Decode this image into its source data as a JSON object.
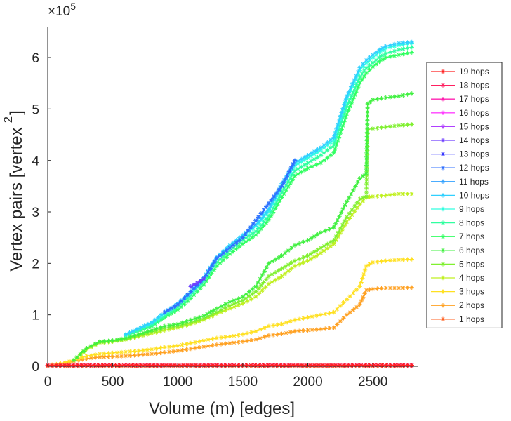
{
  "chart_data": {
    "type": "line",
    "xlabel": "Volume (m) [edges]",
    "ylabel": "Vertex pairs [vertex",
    "ylabel_superscript": "2",
    "ylabel_close": "]",
    "exponent_prefix": "×10",
    "exponent_power": "5",
    "xlim": [
      0,
      2850
    ],
    "ylim": [
      0,
      6.6
    ],
    "y_scale_note": "values in units of 10^5",
    "xticks": [
      0,
      500,
      1000,
      1500,
      2000,
      2500
    ],
    "xtick_labels": [
      "0",
      "500",
      "1000",
      "1500",
      "2000",
      "2500"
    ],
    "yticks": [
      0,
      1,
      2,
      3,
      4,
      5,
      6
    ],
    "ytick_labels": [
      "0",
      "1",
      "2",
      "3",
      "4",
      "5",
      "6"
    ],
    "legend_position": "right",
    "series": [
      {
        "name": "19 hops",
        "color": "#ff2020",
        "x": [
          0,
          2800
        ],
        "y": [
          0.02,
          0.02
        ]
      },
      {
        "name": "18 hops",
        "color": "#ff2060",
        "x": [
          0,
          2800
        ],
        "y": [
          0.02,
          0.02
        ]
      },
      {
        "name": "17 hops",
        "color": "#ff20b0",
        "x": [
          0,
          2800
        ],
        "y": [
          0.02,
          0.02
        ]
      },
      {
        "name": "16 hops",
        "color": "#ff40ff",
        "x": [
          0,
          2800
        ],
        "y": [
          0.02,
          0.02
        ]
      },
      {
        "name": "15 hops",
        "color": "#b040ff",
        "x": [
          0,
          2800
        ],
        "y": [
          0.02,
          0.02
        ]
      },
      {
        "name": "14 hops",
        "color": "#7040ff",
        "x": [
          1100,
          1150,
          1200
        ],
        "y": [
          1.55,
          1.62,
          1.7
        ]
      },
      {
        "name": "13 hops",
        "color": "#3030ff",
        "x": [
          1100,
          1150,
          1200
        ],
        "y": [
          1.55,
          1.62,
          1.7
        ]
      },
      {
        "name": "12 hops",
        "color": "#3070ff",
        "x": [
          900,
          1000,
          1100,
          1200,
          1300,
          1500,
          1800,
          1900
        ],
        "y": [
          1.05,
          1.2,
          1.45,
          1.7,
          2.1,
          2.5,
          3.5,
          4.0
        ]
      },
      {
        "name": "11 hops",
        "color": "#30a0ff",
        "x": [
          900,
          1000,
          1100,
          1200,
          1300,
          1500,
          1800,
          1900
        ],
        "y": [
          1.05,
          1.2,
          1.45,
          1.7,
          2.1,
          2.5,
          3.5,
          4.0
        ]
      },
      {
        "name": "10 hops",
        "color": "#30d0ff",
        "x": [
          600,
          800,
          900,
          1000,
          1100,
          1200,
          1300,
          1400,
          1500,
          1600,
          1700,
          1800,
          1900,
          2000,
          2100,
          2200,
          2300,
          2400,
          2450,
          2500,
          2550,
          2600,
          2700,
          2800
        ],
        "y": [
          0.62,
          0.85,
          1.05,
          1.22,
          1.45,
          1.72,
          2.12,
          2.35,
          2.55,
          2.75,
          3.05,
          3.55,
          3.95,
          4.1,
          4.25,
          4.45,
          5.25,
          5.8,
          5.95,
          6.05,
          6.15,
          6.22,
          6.28,
          6.3
        ]
      },
      {
        "name": "9 hops",
        "color": "#30ffe0",
        "x": [
          600,
          800,
          900,
          1000,
          1100,
          1200,
          1300,
          1400,
          1500,
          1600,
          1700,
          1800,
          1900,
          2000,
          2100,
          2200,
          2300,
          2400,
          2450,
          2500,
          2550,
          2600,
          2700,
          2800
        ],
        "y": [
          0.62,
          0.84,
          1.03,
          1.2,
          1.43,
          1.7,
          2.1,
          2.33,
          2.52,
          2.72,
          3.02,
          3.5,
          3.9,
          4.05,
          4.2,
          4.4,
          5.2,
          5.75,
          5.9,
          6.0,
          6.1,
          6.18,
          6.24,
          6.28
        ]
      },
      {
        "name": "8 hops",
        "color": "#30ffa0",
        "x": [
          600,
          800,
          900,
          1000,
          1100,
          1200,
          1300,
          1400,
          1500,
          1600,
          1700,
          1800,
          1900,
          2000,
          2100,
          2200,
          2300,
          2400,
          2450,
          2500,
          2550,
          2600,
          2700,
          2800
        ],
        "y": [
          0.6,
          0.8,
          0.98,
          1.15,
          1.38,
          1.65,
          2.02,
          2.25,
          2.45,
          2.62,
          2.92,
          3.38,
          3.8,
          3.95,
          4.1,
          4.3,
          5.05,
          5.62,
          5.8,
          5.9,
          6.0,
          6.08,
          6.15,
          6.2
        ]
      },
      {
        "name": "7 hops",
        "color": "#30ff60",
        "x": [
          600,
          800,
          900,
          1000,
          1100,
          1200,
          1300,
          1400,
          1500,
          1600,
          1700,
          1800,
          1900,
          2000,
          2100,
          2200,
          2300,
          2400,
          2450,
          2500,
          2550,
          2600,
          2700,
          2800
        ],
        "y": [
          0.6,
          0.78,
          0.95,
          1.1,
          1.32,
          1.58,
          1.95,
          2.18,
          2.38,
          2.55,
          2.85,
          3.28,
          3.7,
          3.85,
          3.95,
          4.15,
          4.9,
          5.5,
          5.7,
          5.82,
          5.92,
          6.0,
          6.05,
          6.1
        ]
      },
      {
        "name": "6 hops",
        "color": "#40f040",
        "x": [
          200,
          300,
          400,
          500,
          600,
          700,
          800,
          900,
          1000,
          1100,
          1200,
          1300,
          1400,
          1500,
          1600,
          1700,
          1800,
          1900,
          2000,
          2100,
          2200,
          2300,
          2400,
          2450,
          2460,
          2500,
          2600,
          2700,
          2800
        ],
        "y": [
          0.12,
          0.35,
          0.48,
          0.5,
          0.55,
          0.62,
          0.7,
          0.78,
          0.82,
          0.9,
          0.98,
          1.12,
          1.25,
          1.35,
          1.55,
          2.0,
          2.15,
          2.35,
          2.45,
          2.6,
          2.7,
          3.2,
          3.65,
          3.75,
          5.1,
          5.18,
          5.22,
          5.25,
          5.3
        ]
      },
      {
        "name": "5 hops",
        "color": "#80f030",
        "x": [
          200,
          300,
          400,
          500,
          600,
          700,
          800,
          900,
          1000,
          1100,
          1200,
          1300,
          1400,
          1500,
          1600,
          1700,
          1800,
          1900,
          2000,
          2100,
          2200,
          2300,
          2400,
          2450,
          2460,
          2500,
          2600,
          2700,
          2800
        ],
        "y": [
          0.12,
          0.35,
          0.47,
          0.49,
          0.53,
          0.6,
          0.67,
          0.74,
          0.78,
          0.85,
          0.93,
          1.05,
          1.18,
          1.28,
          1.45,
          1.75,
          1.9,
          2.05,
          2.15,
          2.3,
          2.45,
          2.9,
          3.25,
          3.3,
          4.6,
          4.62,
          4.65,
          4.68,
          4.7
        ]
      },
      {
        "name": "4 hops",
        "color": "#c0f020",
        "x": [
          200,
          300,
          400,
          500,
          600,
          700,
          800,
          900,
          1000,
          1100,
          1200,
          1300,
          1400,
          1500,
          1600,
          1700,
          1800,
          1900,
          2000,
          2100,
          2200,
          2300,
          2400,
          2450,
          2500,
          2600,
          2700,
          2800
        ],
        "y": [
          0.12,
          0.33,
          0.46,
          0.48,
          0.52,
          0.58,
          0.64,
          0.7,
          0.75,
          0.82,
          0.9,
          1.02,
          1.12,
          1.22,
          1.35,
          1.6,
          1.75,
          1.95,
          2.05,
          2.2,
          2.38,
          2.8,
          3.15,
          3.28,
          3.3,
          3.32,
          3.35,
          3.35
        ]
      },
      {
        "name": "3 hops",
        "color": "#ffe020",
        "x": [
          0,
          100,
          200,
          300,
          400,
          500,
          600,
          700,
          800,
          900,
          1000,
          1100,
          1200,
          1300,
          1400,
          1500,
          1600,
          1700,
          1800,
          1900,
          2000,
          2100,
          2200,
          2300,
          2400,
          2450,
          2500,
          2600,
          2700,
          2800
        ],
        "y": [
          0.02,
          0.05,
          0.12,
          0.2,
          0.24,
          0.26,
          0.28,
          0.3,
          0.33,
          0.37,
          0.4,
          0.45,
          0.5,
          0.55,
          0.58,
          0.62,
          0.68,
          0.78,
          0.82,
          0.9,
          0.95,
          1.0,
          1.05,
          1.3,
          1.55,
          1.95,
          2.02,
          2.05,
          2.07,
          2.08
        ]
      },
      {
        "name": "2 hops",
        "color": "#ffa020",
        "x": [
          0,
          100,
          200,
          300,
          400,
          500,
          600,
          700,
          800,
          900,
          1000,
          1100,
          1200,
          1300,
          1400,
          1500,
          1600,
          1700,
          1800,
          1900,
          2000,
          2100,
          2200,
          2300,
          2400,
          2450,
          2500,
          2600,
          2700,
          2800
        ],
        "y": [
          0.02,
          0.04,
          0.1,
          0.15,
          0.18,
          0.19,
          0.2,
          0.22,
          0.24,
          0.27,
          0.3,
          0.34,
          0.38,
          0.42,
          0.45,
          0.48,
          0.52,
          0.6,
          0.63,
          0.68,
          0.7,
          0.72,
          0.75,
          1.0,
          1.2,
          1.48,
          1.5,
          1.52,
          1.52,
          1.53
        ]
      },
      {
        "name": "1 hops",
        "color": "#ff6020",
        "x": [
          0,
          500,
          1000,
          1500,
          2000,
          2500,
          2800
        ],
        "y": [
          0.005,
          0.006,
          0.006,
          0.007,
          0.007,
          0.007,
          0.008
        ]
      }
    ]
  }
}
